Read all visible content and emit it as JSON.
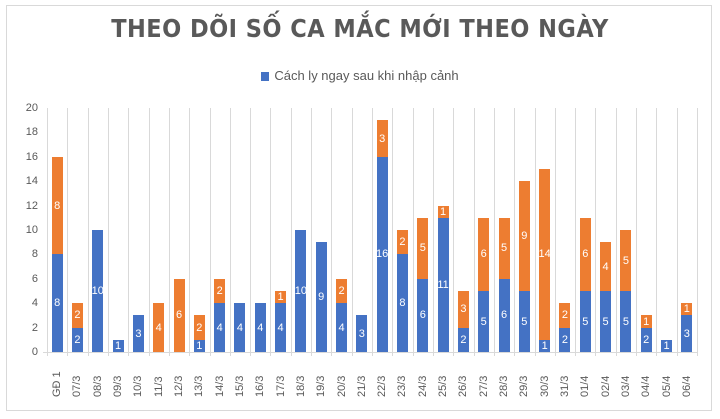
{
  "title": "THEO DÕI SỐ CA MẮC MỚI THEO NGÀY",
  "legend": [
    {
      "label": "Cách ly ngay sau khi nhập cảnh",
      "color": "#4472c4"
    }
  ],
  "colors": {
    "blue": "#4472c4",
    "orange": "#ed7d31",
    "grid": "#d9d9d9",
    "text": "#595959"
  },
  "chart_data": {
    "type": "bar",
    "stacked": true,
    "title": "THEO DÕI SỐ CA MẮC MỚI THEO NGÀY",
    "xlabel": "",
    "ylabel": "",
    "ylim": [
      0,
      20
    ],
    "yticks": [
      0,
      2,
      4,
      6,
      8,
      10,
      12,
      14,
      16,
      18,
      20
    ],
    "grid": "vertical category gridlines",
    "legend_position": "top",
    "categories": [
      "GĐ 1",
      "07/3",
      "08/3",
      "09/3",
      "10/3",
      "11/3",
      "12/3",
      "13/3",
      "14/3",
      "15/3",
      "16/3",
      "17/3",
      "18/3",
      "19/3",
      "20/3",
      "21/3",
      "22/3",
      "23/3",
      "24/3",
      "25/3",
      "26/3",
      "27/3",
      "28/3",
      "29/3",
      "30/3",
      "31/3",
      "01/4",
      "02/4",
      "03/4",
      "04/4",
      "05/4",
      "06/4"
    ],
    "series": [
      {
        "name": "Cách ly ngay sau khi nhập cảnh",
        "color": "#4472c4",
        "values": [
          8,
          2,
          10,
          1,
          3,
          0,
          0,
          1,
          4,
          4,
          4,
          4,
          10,
          9,
          4,
          3,
          16,
          8,
          6,
          11,
          2,
          5,
          6,
          5,
          1,
          2,
          5,
          5,
          5,
          2,
          1,
          3
        ]
      },
      {
        "name": "",
        "color": "#ed7d31",
        "values": [
          8,
          2,
          0,
          0,
          0,
          4,
          6,
          2,
          2,
          0,
          0,
          1,
          0,
          0,
          2,
          0,
          3,
          2,
          5,
          1,
          3,
          6,
          5,
          9,
          14,
          2,
          6,
          4,
          5,
          1,
          0,
          1
        ]
      }
    ]
  }
}
